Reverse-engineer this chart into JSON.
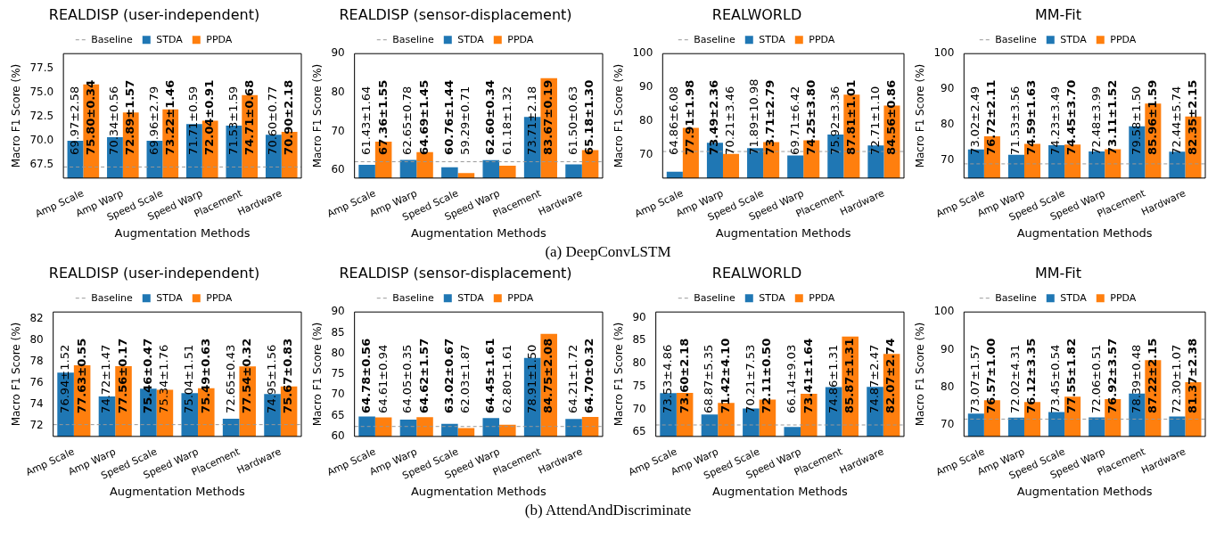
{
  "chart_data": [
    {
      "type": "bar",
      "title": "REALDISP (user-independent)",
      "xlabel": "Augmentation Methods",
      "ylabel": "Macro F1 Score (%)",
      "categories": [
        "Amp Scale",
        "Amp Warp",
        "Speed Scale",
        "Speed Warp",
        "Placement",
        "Hardware"
      ],
      "ylim": [
        66.1,
        79
      ],
      "yticks": [
        {
          "value": 67.5,
          "label": "67.5"
        },
        {
          "value": 70,
          "label": "70.0"
        },
        {
          "value": 72.5,
          "label": "72.5"
        },
        {
          "value": 75,
          "label": "75.0"
        },
        {
          "value": 77.5,
          "label": "77.5"
        }
      ],
      "legend": "top",
      "annotations": [
        "(a) DeepConvLSTM"
      ],
      "ref_lines": [
        {
          "axis": "y",
          "value": 67.25,
          "label": "Baseline",
          "color": "#999999",
          "line_style": "dashed"
        }
      ],
      "series": [
        {
          "name": "STDA",
          "color": "#1f77b4",
          "values": [
            69.97,
            70.34,
            69.96,
            71.71,
            71.53,
            70.6
          ],
          "value_labels": [
            "69.97±2.58",
            "70.34±0.56",
            "69.96±2.79",
            "71.71±0.59",
            "71.53±1.59",
            "70.60±0.77"
          ]
        },
        {
          "name": "PPDA",
          "color": "#ff7f0e",
          "values": [
            75.8,
            72.89,
            73.22,
            72.04,
            74.71,
            70.9
          ],
          "value_labels": [
            "75.80±0.34",
            "72.89±1.57",
            "73.22±1.46",
            "72.04±0.91",
            "74.71±0.68",
            "70.90±2.18"
          ]
        }
      ]
    },
    {
      "type": "bar",
      "title": "REALDISP (sensor-displacement)",
      "xlabel": "Augmentation Methods",
      "ylabel": "Macro F1 Score (%)",
      "categories": [
        "Amp Scale",
        "Amp Warp",
        "Speed Scale",
        "Speed Warp",
        "Placement",
        "Hardware"
      ],
      "ylim": [
        58,
        90
      ],
      "yticks": [
        60,
        70,
        80,
        90
      ],
      "legend": "top",
      "ref_lines": [
        {
          "axis": "y",
          "value": 62.2,
          "label": "Baseline",
          "color": "#999999",
          "line_style": "dashed"
        }
      ],
      "series": [
        {
          "name": "STDA",
          "color": "#1f77b4",
          "values": [
            61.43,
            62.65,
            60.76,
            62.6,
            73.71,
            61.5
          ],
          "value_labels": [
            "61.43±1.64",
            "62.65±0.78",
            "60.76±1.44",
            "62.60±0.34",
            "73.71±2.18",
            "61.50±0.63"
          ]
        },
        {
          "name": "PPDA",
          "color": "#ff7f0e",
          "values": [
            67.36,
            64.69,
            59.29,
            61.18,
            83.67,
            65.18
          ],
          "value_labels": [
            "67.36±1.55",
            "64.69±1.45",
            "59.29±0.71",
            "61.18±1.32",
            "83.67±0.19",
            "65.18±1.30"
          ]
        }
      ]
    },
    {
      "type": "bar",
      "title": "REALWORLD",
      "xlabel": "Augmentation Methods",
      "ylabel": "Macro F1 Score (%)",
      "categories": [
        "Amp Scale",
        "Amp Warp",
        "Speed Scale",
        "Speed Warp",
        "Placement",
        "Hardware"
      ],
      "ylim": [
        63,
        100
      ],
      "yticks": [
        70,
        80,
        90,
        100
      ],
      "legend": "top",
      "ref_lines": [
        {
          "axis": "y",
          "value": 70.9,
          "label": "Baseline",
          "color": "#999999",
          "line_style": "dashed"
        }
      ],
      "series": [
        {
          "name": "STDA",
          "color": "#1f77b4",
          "values": [
            64.86,
            73.49,
            71.89,
            69.71,
            75.92,
            72.71
          ],
          "value_labels": [
            "64.86±6.08",
            "73.49±2.36",
            "71.89±10.98",
            "69.71±6.42",
            "75.92±3.36",
            "72.71±1.10"
          ]
        },
        {
          "name": "PPDA",
          "color": "#ff7f0e",
          "values": [
            77.91,
            70.21,
            73.71,
            74.25,
            87.81,
            84.56
          ],
          "value_labels": [
            "77.91±1.98",
            "70.21±3.46",
            "73.71±2.79",
            "74.25±3.80",
            "87.81±1.01",
            "84.56±0.86"
          ]
        }
      ]
    },
    {
      "type": "bar",
      "title": "MM-Fit",
      "xlabel": "Augmentation Methods",
      "ylabel": "Macro F1 Score (%)",
      "categories": [
        "Amp Scale",
        "Amp Warp",
        "Speed Scale",
        "Speed Warp",
        "Placement",
        "Hardware"
      ],
      "ylim": [
        65,
        100
      ],
      "yticks": [
        70,
        80,
        90,
        100
      ],
      "legend": "top",
      "ref_lines": [
        {
          "axis": "y",
          "value": 69,
          "label": "Baseline",
          "color": "#999999",
          "line_style": "dashed"
        }
      ],
      "series": [
        {
          "name": "STDA",
          "color": "#1f77b4",
          "values": [
            73.02,
            71.53,
            74.23,
            72.48,
            79.58,
            72.44
          ],
          "value_labels": [
            "73.02±2.49",
            "71.53±3.56",
            "74.23±3.49",
            "72.48±3.99",
            "79.58±1.50",
            "72.44±5.74"
          ]
        },
        {
          "name": "PPDA",
          "color": "#ff7f0e",
          "values": [
            76.72,
            74.59,
            74.45,
            73.11,
            85.96,
            82.35
          ],
          "value_labels": [
            "76.72±2.11",
            "74.59±1.63",
            "74.45±3.70",
            "73.11±1.52",
            "85.96±1.59",
            "82.35±2.15"
          ]
        }
      ]
    },
    {
      "type": "bar",
      "title": "REALDISP (user-independent)",
      "xlabel": "Augmentation Methods",
      "ylabel": "Macro F1 Score (%)",
      "categories": [
        "Amp Scale",
        "Amp Warp",
        "Speed Scale",
        "Speed Warp",
        "Placement",
        "Hardware"
      ],
      "ylim": [
        71,
        82.6
      ],
      "yticks": [
        72,
        74,
        76,
        78,
        80,
        82
      ],
      "legend": "top",
      "annotations": [
        "(b) AttendAndDiscriminate"
      ],
      "ref_lines": [
        {
          "axis": "y",
          "value": 72.1,
          "label": "Baseline",
          "color": "#999999",
          "line_style": "dashed"
        }
      ],
      "series": [
        {
          "name": "STDA",
          "color": "#1f77b4",
          "values": [
            76.94,
            74.72,
            75.46,
            75.04,
            72.65,
            74.95
          ],
          "value_labels": [
            "76.94±1.52",
            "74.72±1.47",
            "75.46±0.47",
            "75.04±1.51",
            "72.65±0.43",
            "74.95±1.56"
          ]
        },
        {
          "name": "PPDA",
          "color": "#ff7f0e",
          "values": [
            77.63,
            77.56,
            75.34,
            75.49,
            77.54,
            75.67
          ],
          "value_labels": [
            "77.63±0.55",
            "77.56±0.17",
            "75.34±1.76",
            "75.49±0.63",
            "77.54±0.32",
            "75.67±0.83"
          ]
        }
      ]
    },
    {
      "type": "bar",
      "title": "REALDISP (sensor-displacement)",
      "xlabel": "Augmentation Methods",
      "ylabel": "Macro F1 Score (%)",
      "categories": [
        "Amp Scale",
        "Amp Warp",
        "Speed Scale",
        "Speed Warp",
        "Placement",
        "Hardware"
      ],
      "ylim": [
        60,
        90
      ],
      "yticks": [
        60,
        65,
        70,
        75,
        80,
        85,
        90
      ],
      "legend": "top",
      "ref_lines": [
        {
          "axis": "y",
          "value": 62.4,
          "label": "Baseline",
          "color": "#999999",
          "line_style": "dashed"
        }
      ],
      "series": [
        {
          "name": "STDA",
          "color": "#1f77b4",
          "values": [
            64.78,
            64.05,
            63.02,
            64.45,
            78.91,
            64.21
          ],
          "value_labels": [
            "64.78±0.56",
            "64.05±0.35",
            "63.02±0.67",
            "64.45±1.61",
            "78.91±1.50",
            "64.21±1.72"
          ]
        },
        {
          "name": "PPDA",
          "color": "#ff7f0e",
          "values": [
            64.61,
            64.62,
            62.03,
            62.8,
            84.75,
            64.7
          ],
          "value_labels": [
            "64.61±0.94",
            "64.62±1.57",
            "62.03±1.87",
            "62.80±1.61",
            "84.75±2.08",
            "64.70±0.32"
          ]
        }
      ]
    },
    {
      "type": "bar",
      "title": "REALWORLD",
      "xlabel": "Augmentation Methods",
      "ylabel": "Macro F1 Score (%)",
      "categories": [
        "Amp Scale",
        "Amp Warp",
        "Speed Scale",
        "Speed Warp",
        "Placement",
        "Hardware"
      ],
      "ylim": [
        64.1,
        91.2
      ],
      "yticks": [
        65,
        70,
        75,
        80,
        85,
        90
      ],
      "legend": "top",
      "ref_lines": [
        {
          "axis": "y",
          "value": 66.6,
          "label": "Baseline",
          "color": "#999999",
          "line_style": "dashed"
        }
      ],
      "series": [
        {
          "name": "STDA",
          "color": "#1f77b4",
          "values": [
            73.53,
            68.87,
            70.21,
            66.14,
            74.86,
            74.87
          ],
          "value_labels": [
            "73.53±4.86",
            "68.87±5.35",
            "70.21±7.53",
            "66.14±9.03",
            "74.86±1.31",
            "74.87±2.47"
          ]
        },
        {
          "name": "PPDA",
          "color": "#ff7f0e",
          "values": [
            73.6,
            71.42,
            72.11,
            73.41,
            85.87,
            82.07
          ],
          "value_labels": [
            "73.60±2.18",
            "71.42±4.10",
            "72.11±0.50",
            "73.41±1.64",
            "85.87±1.31",
            "82.07±2.74"
          ]
        }
      ]
    },
    {
      "type": "bar",
      "title": "MM-Fit",
      "xlabel": "Augmentation Methods",
      "ylabel": "Macro F1 Score (%)",
      "categories": [
        "Amp Scale",
        "Amp Warp",
        "Speed Scale",
        "Speed Warp",
        "Placement",
        "Hardware"
      ],
      "ylim": [
        67,
        100
      ],
      "yticks": [
        70,
        80,
        90,
        100
      ],
      "legend": "top",
      "ref_lines": [
        {
          "axis": "y",
          "value": 71.6,
          "label": "Baseline",
          "color": "#999999",
          "line_style": "dashed"
        }
      ],
      "series": [
        {
          "name": "STDA",
          "color": "#1f77b4",
          "values": [
            73.07,
            72.02,
            73.45,
            72.06,
            78.39,
            72.3
          ],
          "value_labels": [
            "73.07±1.57",
            "72.02±4.31",
            "73.45±0.54",
            "72.06±0.51",
            "78.39±0.48",
            "72.30±1.07"
          ]
        },
        {
          "name": "PPDA",
          "color": "#ff7f0e",
          "values": [
            76.57,
            76.12,
            77.55,
            76.92,
            87.22,
            81.37
          ],
          "value_labels": [
            "76.57±1.00",
            "76.12±3.35",
            "77.55±1.82",
            "76.92±3.57",
            "87.22±2.15",
            "81.37±2.38"
          ]
        }
      ]
    }
  ]
}
